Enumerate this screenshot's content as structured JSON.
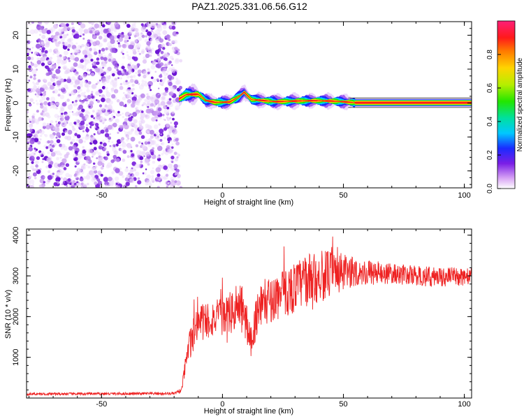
{
  "title": "PAZ1.2025.331.06.56.G12",
  "chart_data": [
    {
      "type": "heatmap",
      "name": "spectrogram",
      "xlabel": "Height of straight line (km)",
      "ylabel": "Frequency (Hz)",
      "xlim": [
        -81,
        103
      ],
      "ylim": [
        -25,
        24
      ],
      "xticks": [
        -50,
        0,
        50,
        100
      ],
      "yticks": [
        -20,
        -10,
        0,
        10,
        20
      ],
      "noise_region_x": [
        -81,
        -18
      ],
      "signal_start_x": -18,
      "signal_ridge": [
        {
          "x": -18,
          "y": 1.2
        },
        {
          "x": -15,
          "y": 2.5
        },
        {
          "x": -10,
          "y": 2.6
        },
        {
          "x": -7,
          "y": 0.8
        },
        {
          "x": -3,
          "y": 0.2
        },
        {
          "x": 3,
          "y": 0.3
        },
        {
          "x": 7,
          "y": 2.0
        },
        {
          "x": 9,
          "y": 3.2
        },
        {
          "x": 12,
          "y": 1.0
        },
        {
          "x": 16,
          "y": 0.8
        },
        {
          "x": 22,
          "y": 0.4
        },
        {
          "x": 30,
          "y": 0.6
        },
        {
          "x": 38,
          "y": 0.7
        },
        {
          "x": 45,
          "y": 0.6
        },
        {
          "x": 50,
          "y": 0.4
        },
        {
          "x": 55,
          "y": 0.1
        },
        {
          "x": 103,
          "y": 0.1
        }
      ],
      "colorbar": {
        "label": "Normalized spectral amplitude",
        "range": [
          0.0,
          1.0
        ],
        "ticks": [
          0.0,
          0.2,
          0.4,
          0.6,
          0.8
        ],
        "tick_labels": [
          "0.0",
          "0.2",
          "0.4",
          "0.6",
          "0.8"
        ]
      }
    },
    {
      "type": "line",
      "name": "snr",
      "xlabel": "Height of straight line (km)",
      "ylabel": "SNR (10 * v/v)",
      "xlim": [
        -81,
        103
      ],
      "ylim": [
        0,
        4150
      ],
      "xticks": [
        -50,
        0,
        50,
        100
      ],
      "yticks": [
        1000,
        2000,
        3000,
        4000
      ],
      "series_color": "#ee2222",
      "envelope": [
        {
          "x": -81,
          "mean": 100,
          "amp": 30
        },
        {
          "x": -20,
          "mean": 110,
          "amp": 35
        },
        {
          "x": -17,
          "mean": 180,
          "amp": 60
        },
        {
          "x": -15,
          "mean": 900,
          "amp": 250
        },
        {
          "x": -12,
          "mean": 1700,
          "amp": 550
        },
        {
          "x": -8,
          "mean": 1900,
          "amp": 500
        },
        {
          "x": 0,
          "mean": 2000,
          "amp": 450
        },
        {
          "x": 8,
          "mean": 2200,
          "amp": 650
        },
        {
          "x": 12,
          "mean": 1400,
          "amp": 400
        },
        {
          "x": 15,
          "mean": 2300,
          "amp": 550
        },
        {
          "x": 25,
          "mean": 2550,
          "amp": 600
        },
        {
          "x": 35,
          "mean": 2900,
          "amp": 650
        },
        {
          "x": 45,
          "mean": 3050,
          "amp": 600
        },
        {
          "x": 55,
          "mean": 3100,
          "amp": 350
        },
        {
          "x": 70,
          "mean": 3050,
          "amp": 250
        },
        {
          "x": 85,
          "mean": 2980,
          "amp": 250
        },
        {
          "x": 103,
          "mean": 2980,
          "amp": 220
        }
      ]
    }
  ],
  "colors": {
    "line": "#ee2222",
    "frame": "#000000",
    "noise_purple": "#7a22dd"
  }
}
